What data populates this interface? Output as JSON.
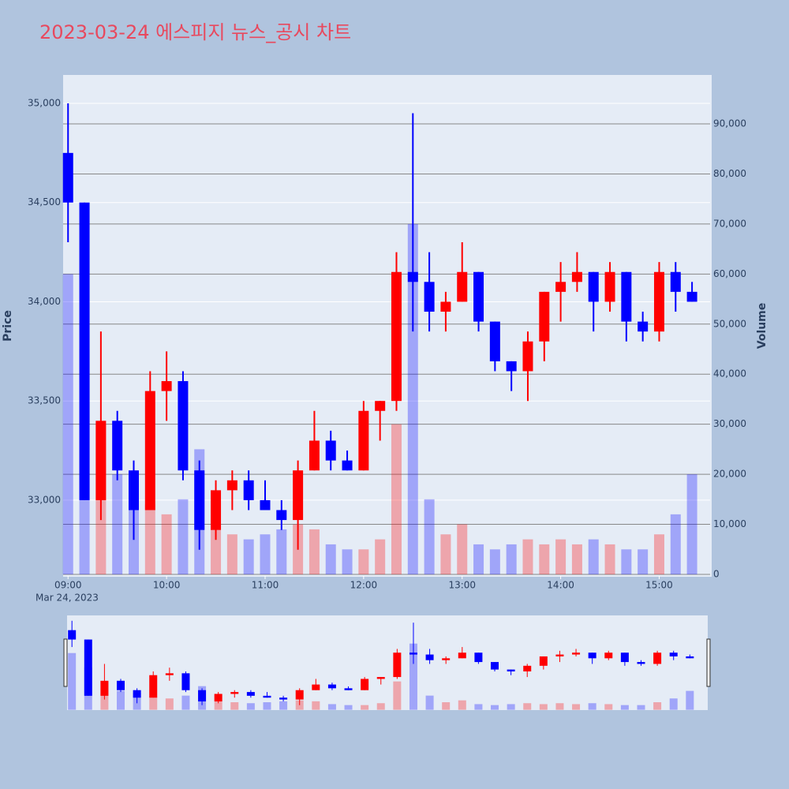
{
  "chart_data": {
    "type": "candlestick",
    "title": "2023-03-24 에스피지 뉴스_공시 차트",
    "ylabel": "Price",
    "y2label": "Volume",
    "x_date_label": "Mar 24, 2023",
    "x": [
      "2023-03-24 09:00",
      "2023-03-24 09:10",
      "2023-03-24 09:20",
      "2023-03-24 09:30",
      "2023-03-24 09:40",
      "2023-03-24 09:50",
      "2023-03-24 10:00",
      "2023-03-24 10:10",
      "2023-03-24 10:20",
      "2023-03-24 10:30",
      "2023-03-24 10:40",
      "2023-03-24 10:50",
      "2023-03-24 11:00",
      "2023-03-24 11:10",
      "2023-03-24 11:20",
      "2023-03-24 11:30",
      "2023-03-24 11:40",
      "2023-03-24 11:50",
      "2023-03-24 12:00",
      "2023-03-24 12:10",
      "2023-03-24 12:20",
      "2023-03-24 12:30",
      "2023-03-24 12:40",
      "2023-03-24 12:50",
      "2023-03-24 13:00",
      "2023-03-24 13:10",
      "2023-03-24 13:20",
      "2023-03-24 13:30",
      "2023-03-24 13:40",
      "2023-03-24 13:50",
      "2023-03-24 14:00",
      "2023-03-24 14:10",
      "2023-03-24 14:20",
      "2023-03-24 14:30",
      "2023-03-24 14:40",
      "2023-03-24 14:50",
      "2023-03-24 15:00",
      "2023-03-24 15:10",
      "2023-03-24 15:20"
    ],
    "open": [
      34750,
      34500,
      33000,
      33400,
      33150,
      32950,
      33550,
      33600,
      33150,
      32850,
      33050,
      33100,
      33000,
      32950,
      32900,
      33150,
      33300,
      33200,
      33150,
      33450,
      33500,
      34150,
      34100,
      33950,
      34000,
      34150,
      33900,
      33700,
      33650,
      33800,
      34050,
      34100,
      34150,
      34000,
      34150,
      33900,
      33850,
      34150,
      34050
    ],
    "high": [
      35000,
      34500,
      33850,
      33450,
      33200,
      33650,
      33750,
      33650,
      33200,
      33100,
      33150,
      33150,
      33100,
      33000,
      33200,
      33450,
      33350,
      33250,
      33500,
      33500,
      34250,
      34950,
      34250,
      34050,
      34300,
      34150,
      33900,
      33700,
      33850,
      34050,
      34200,
      34250,
      34150,
      34200,
      34150,
      33950,
      34200,
      34200,
      34100
    ],
    "low": [
      34300,
      33000,
      32900,
      33100,
      32800,
      32950,
      33400,
      33100,
      32750,
      32800,
      32950,
      32950,
      32950,
      32850,
      32750,
      33150,
      33150,
      33150,
      33150,
      33300,
      33450,
      33850,
      33850,
      33850,
      34000,
      33850,
      33650,
      33550,
      33500,
      33700,
      33900,
      34050,
      33850,
      33950,
      33800,
      33800,
      33800,
      33950,
      34000
    ],
    "close": [
      34500,
      33000,
      33400,
      33150,
      32950,
      33550,
      33600,
      33150,
      32850,
      33050,
      33100,
      33000,
      32950,
      32900,
      33150,
      33300,
      33200,
      33150,
      33450,
      33500,
      34150,
      34100,
      33950,
      34000,
      34150,
      33900,
      33700,
      33650,
      33800,
      34050,
      34100,
      34150,
      34000,
      34150,
      33900,
      33850,
      34150,
      34050,
      34000
    ],
    "volume": [
      60000,
      45000,
      30000,
      20000,
      18000,
      14000,
      12000,
      15000,
      25000,
      9000,
      8000,
      7000,
      8000,
      9000,
      10000,
      9000,
      6000,
      5000,
      5000,
      7000,
      30000,
      70000,
      15000,
      8000,
      10000,
      6000,
      5000,
      6000,
      7000,
      6000,
      7000,
      6000,
      7000,
      6000,
      5000,
      5000,
      8000,
      12000,
      20000
    ],
    "increasing_color": "#ff0000",
    "decreasing_color": "#0000ff",
    "xlim": [
      "2023-03-24 08:57",
      "2023-03-24 15:31"
    ],
    "xticks": [
      {
        "value": "2023-03-24 09:00",
        "label": "09:00"
      },
      {
        "value": "2023-03-24 10:00",
        "label": "10:00"
      },
      {
        "value": "2023-03-24 11:00",
        "label": "11:00"
      },
      {
        "value": "2023-03-24 12:00",
        "label": "12:00"
      },
      {
        "value": "2023-03-24 13:00",
        "label": "13:00"
      },
      {
        "value": "2023-03-24 14:00",
        "label": "14:00"
      },
      {
        "value": "2023-03-24 15:00",
        "label": "15:00"
      }
    ],
    "ylim": [
      32618,
      35143
    ],
    "yticks": [
      {
        "value": 33000,
        "label": "33,000"
      },
      {
        "value": 33500,
        "label": "33,500"
      },
      {
        "value": 34000,
        "label": "34,000"
      },
      {
        "value": 34500,
        "label": "34,500"
      },
      {
        "value": 35000,
        "label": "35,000"
      }
    ],
    "y2lim": [
      -315,
      99780
    ],
    "y2ticks": [
      0,
      {
        "value": 10000,
        "label": "10,000"
      },
      {
        "value": 20000,
        "label": "20,000"
      },
      {
        "value": 30000,
        "label": "30,000"
      },
      {
        "value": 40000,
        "label": "40,000"
      },
      {
        "value": 50000,
        "label": "50,000"
      },
      {
        "value": 60000,
        "label": "60,000"
      },
      {
        "value": 70000,
        "label": "70,000"
      },
      {
        "value": 80000,
        "label": "80,000"
      },
      {
        "value": 90000,
        "label": "90,000"
      }
    ],
    "grid": true,
    "rangeslider": true
  }
}
